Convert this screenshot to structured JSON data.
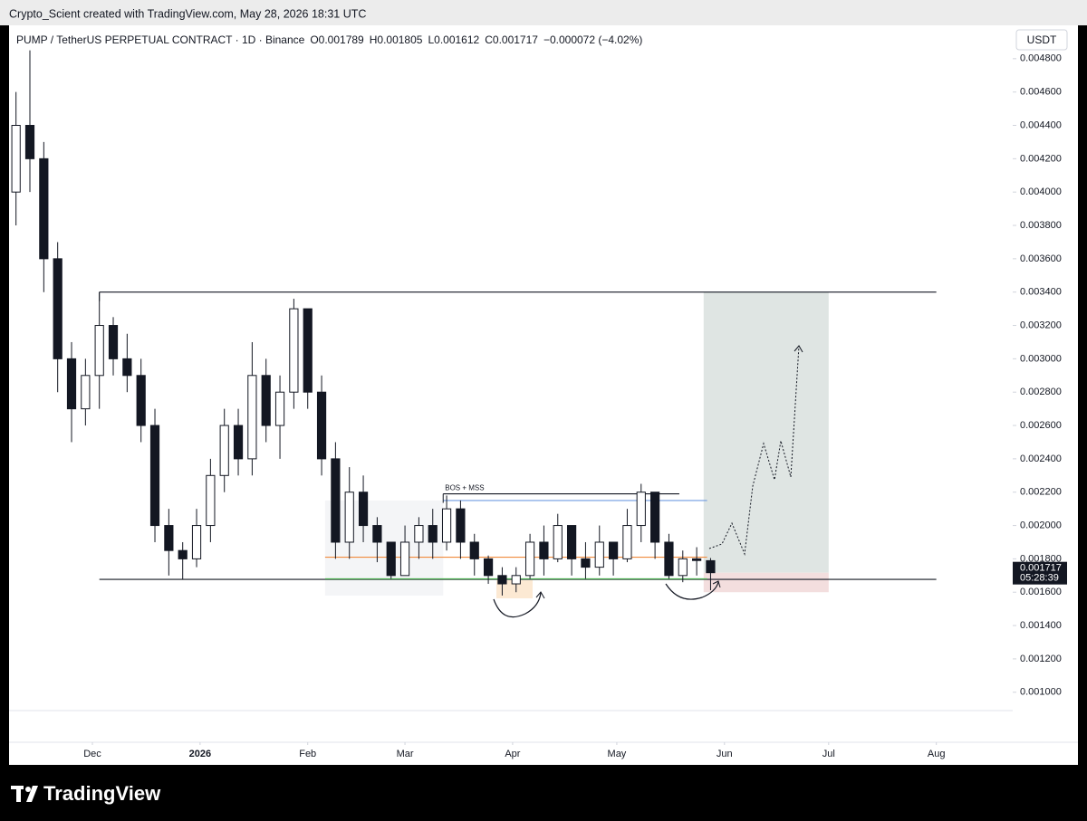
{
  "header": {
    "attribution": "Crypto_Scient created with TradingView.com, May 28, 2026 18:31 UTC"
  },
  "chart_data": {
    "type": "candlestick",
    "legend": {
      "symbol": "PUMP / TetherUS PERPETUAL CONTRACT · 1D · Binance",
      "o_label": "O",
      "o": "0.001789",
      "h_label": "H",
      "h": "0.001805",
      "l_label": "L",
      "l": "0.001612",
      "c_label": "C",
      "c": "0.001717",
      "change": "−0.000072 (−4.02%)"
    },
    "currency": "USDT",
    "last_price_label": "0.001717",
    "countdown": "05:28:39",
    "up_color": "#ffffff",
    "down_color": "#131722",
    "outline_color": "#131722",
    "x": [
      -22,
      -18,
      -14,
      -10,
      -6,
      -2,
      2,
      6,
      10,
      14,
      18,
      22,
      26,
      30,
      34,
      38,
      42,
      46,
      50,
      54,
      58,
      62,
      66,
      70,
      74,
      78,
      82,
      86,
      90,
      94,
      98,
      102,
      106,
      110,
      114,
      118,
      122,
      126,
      130,
      134,
      138,
      142,
      146,
      150,
      154,
      158,
      162,
      166,
      170,
      174,
      178
    ],
    "open": [
      0.004,
      0.0044,
      0.0042,
      0.0036,
      0.003,
      0.0027,
      0.0029,
      0.0032,
      0.003,
      0.0029,
      0.0026,
      0.002,
      0.00185,
      0.0018,
      0.002,
      0.0023,
      0.0026,
      0.0024,
      0.0029,
      0.0026,
      0.0028,
      0.0033,
      0.0028,
      0.0024,
      0.0019,
      0.0022,
      0.002,
      0.0019,
      0.0017,
      0.0019,
      0.002,
      0.0019,
      0.0021,
      0.0019,
      0.0018,
      0.0017,
      0.00165,
      0.0017,
      0.0019,
      0.0018,
      0.002,
      0.0018,
      0.00175,
      0.0019,
      0.0018,
      0.002,
      0.0022,
      0.0019,
      0.0017,
      0.0018,
      0.001789
    ],
    "high": [
      0.0046,
      0.00485,
      0.0043,
      0.0037,
      0.0031,
      0.003,
      0.0034,
      0.00325,
      0.00315,
      0.003,
      0.0027,
      0.0021,
      0.0019,
      0.0021,
      0.0024,
      0.0027,
      0.0027,
      0.0031,
      0.003,
      0.0029,
      0.00336,
      0.0033,
      0.0029,
      0.0025,
      0.00235,
      0.0023,
      0.00205,
      0.0019,
      0.002,
      0.00205,
      0.0021,
      0.00218,
      0.00215,
      0.00195,
      0.00182,
      0.00175,
      0.00175,
      0.00195,
      0.002,
      0.00207,
      0.002,
      0.0019,
      0.002,
      0.0019,
      0.0021,
      0.00225,
      0.0022,
      0.00195,
      0.00185,
      0.00187,
      0.001805
    ],
    "low": [
      0.0038,
      0.004,
      0.0034,
      0.0028,
      0.0025,
      0.0026,
      0.0027,
      0.0029,
      0.0028,
      0.0025,
      0.0019,
      0.0017,
      0.00168,
      0.00175,
      0.0019,
      0.0022,
      0.0023,
      0.0023,
      0.0025,
      0.0024,
      0.0027,
      0.0027,
      0.0023,
      0.0018,
      0.0018,
      0.0019,
      0.00178,
      0.00168,
      0.0017,
      0.0018,
      0.0018,
      0.00185,
      0.0018,
      0.0017,
      0.00165,
      0.00158,
      0.0016,
      0.00168,
      0.0017,
      0.00178,
      0.0017,
      0.00168,
      0.0017,
      0.0017,
      0.00178,
      0.0019,
      0.0018,
      0.00168,
      0.00166,
      0.0017,
      0.001612
    ],
    "close": [
      0.0044,
      0.0042,
      0.0036,
      0.003,
      0.0027,
      0.0029,
      0.0032,
      0.003,
      0.0029,
      0.0026,
      0.002,
      0.00185,
      0.0018,
      0.002,
      0.0023,
      0.0026,
      0.0024,
      0.0029,
      0.0026,
      0.0028,
      0.0033,
      0.0028,
      0.0024,
      0.0019,
      0.0022,
      0.002,
      0.0019,
      0.0017,
      0.0019,
      0.002,
      0.0019,
      0.0021,
      0.0019,
      0.0018,
      0.0017,
      0.00165,
      0.0017,
      0.0019,
      0.0018,
      0.002,
      0.0018,
      0.00175,
      0.0019,
      0.0018,
      0.002,
      0.0022,
      0.0019,
      0.0017,
      0.0018,
      0.00179,
      0.001717
    ],
    "xlim": [
      -24,
      265
    ],
    "xticks": [
      {
        "value": 0,
        "label": "Dec"
      },
      {
        "value": 31,
        "label": "2026"
      },
      {
        "value": 62,
        "label": "Feb"
      },
      {
        "value": 90,
        "label": "Mar"
      },
      {
        "value": 121,
        "label": "Apr"
      },
      {
        "value": 151,
        "label": "May"
      },
      {
        "value": 182,
        "label": "Jun"
      },
      {
        "value": 212,
        "label": "Jul"
      },
      {
        "value": 243,
        "label": "Aug"
      }
    ],
    "ylim": [
      0.0007,
      0.005
    ],
    "yticks": [
      {
        "value": 0.0048,
        "label": "0.004800"
      },
      {
        "value": 0.0046,
        "label": "0.004600"
      },
      {
        "value": 0.0044,
        "label": "0.004400"
      },
      {
        "value": 0.0042,
        "label": "0.004200"
      },
      {
        "value": 0.004,
        "label": "0.004000"
      },
      {
        "value": 0.0038,
        "label": "0.003800"
      },
      {
        "value": 0.0036,
        "label": "0.003600"
      },
      {
        "value": 0.0034,
        "label": "0.003400"
      },
      {
        "value": 0.0032,
        "label": "0.003200"
      },
      {
        "value": 0.003,
        "label": "0.003000"
      },
      {
        "value": 0.0028,
        "label": "0.002800"
      },
      {
        "value": 0.0026,
        "label": "0.002600"
      },
      {
        "value": 0.0024,
        "label": "0.002400"
      },
      {
        "value": 0.0022,
        "label": "0.002200"
      },
      {
        "value": 0.002,
        "label": "0.002000"
      },
      {
        "value": 0.0018,
        "label": "0.001800"
      },
      {
        "value": 0.0016,
        "label": "0.001600"
      },
      {
        "value": 0.0014,
        "label": "0.001400"
      },
      {
        "value": 0.0012,
        "label": "0.001200"
      },
      {
        "value": 0.001,
        "label": "0.001000"
      }
    ],
    "levels": [
      {
        "value": 0.0034,
        "start": 2,
        "end": 243,
        "color": "#131722"
      },
      {
        "value": 0.001677,
        "start": 2,
        "end": 243,
        "color": "#131722"
      },
      {
        "value": 0.00219,
        "start": 101,
        "end": 169,
        "color": "#131722"
      },
      {
        "value": 0.00215,
        "start": 101,
        "end": 177,
        "color": "#6f9be0"
      },
      {
        "value": 0.00181,
        "start": 67,
        "end": 177,
        "color": "#f08a3c"
      },
      {
        "value": 0.00168,
        "start": 67,
        "end": 177,
        "color": "#4caf50"
      }
    ],
    "annotation": "BOS + MSS",
    "position": {
      "start": 176,
      "end": 212,
      "entry": 0.001717,
      "target": 0.0034,
      "stop": 0.0016
    }
  },
  "footer": {
    "brand": "TradingView"
  }
}
